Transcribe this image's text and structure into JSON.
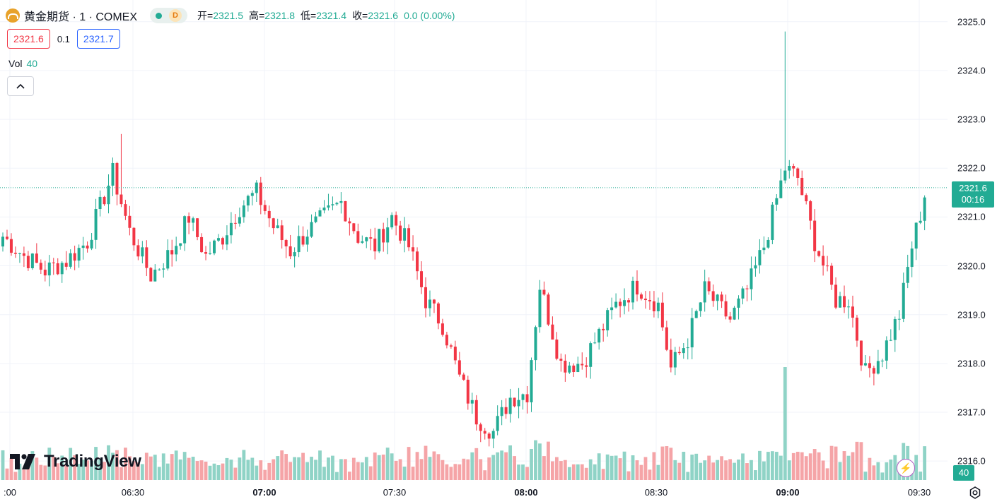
{
  "symbol": {
    "title": "黄金期货 · 1 · COMEX",
    "logo_icon": "gold-bars-icon",
    "status_dot_color": "#22ab94",
    "session_badge": "D"
  },
  "ohlc": {
    "open_label": "开=",
    "open": "2321.5",
    "high_label": "高=",
    "high": "2321.8",
    "low_label": "低=",
    "low": "2321.4",
    "close_label": "收=",
    "close": "2321.6",
    "change": "0.0 (0.00%)"
  },
  "quote": {
    "bid": "2321.6",
    "spread": "0.1",
    "ask": "2321.7"
  },
  "volume_legend": {
    "label": "Vol",
    "value": "40"
  },
  "branding": {
    "logo_text": "TradingView"
  },
  "last_price": {
    "price": "2321.6",
    "countdown": "00:16",
    "volume": "40"
  },
  "colors": {
    "up": "#22ab94",
    "down": "#f23645",
    "vol_up": "#8fd3c6",
    "vol_down": "#f5a4a7"
  },
  "chart_data": {
    "type": "candlestick",
    "interval": "1 minute",
    "ylim": [
      2315.8,
      2325.3
    ],
    "y_ticks": [
      "2325.0",
      "2324.0",
      "2323.0",
      "2322.0",
      "2321.0",
      "2320.0",
      "2319.0",
      "2318.0",
      "2317.0",
      "2316.0"
    ],
    "x_ticks": [
      {
        "label": ":00",
        "bold": false
      },
      {
        "label": "06:30",
        "bold": false
      },
      {
        "label": "07:00",
        "bold": true
      },
      {
        "label": "07:30",
        "bold": false
      },
      {
        "label": "08:00",
        "bold": true
      },
      {
        "label": "08:30",
        "bold": false
      },
      {
        "label": "09:00",
        "bold": true
      },
      {
        "label": "09:30",
        "bold": false
      }
    ],
    "last_price_line": 2321.6,
    "grid": true,
    "anchors": [
      [
        0,
        2320.6
      ],
      [
        5,
        2320.2
      ],
      [
        10,
        2319.9
      ],
      [
        15,
        2320.1
      ],
      [
        20,
        2320.5
      ],
      [
        26,
        2321.9
      ],
      [
        30,
        2320.7
      ],
      [
        35,
        2319.8
      ],
      [
        40,
        2320.3
      ],
      [
        44,
        2321.0
      ],
      [
        48,
        2320.2
      ],
      [
        52,
        2320.6
      ],
      [
        56,
        2321.2
      ],
      [
        60,
        2321.5
      ],
      [
        64,
        2320.8
      ],
      [
        68,
        2320.3
      ],
      [
        72,
        2320.7
      ],
      [
        76,
        2321.0
      ],
      [
        80,
        2321.3
      ],
      [
        84,
        2320.6
      ],
      [
        88,
        2320.4
      ],
      [
        92,
        2321.0
      ],
      [
        96,
        2320.4
      ],
      [
        100,
        2319.3
      ],
      [
        104,
        2318.8
      ],
      [
        108,
        2317.7
      ],
      [
        112,
        2316.9
      ],
      [
        116,
        2316.6
      ],
      [
        120,
        2317.3
      ],
      [
        124,
        2317.4
      ],
      [
        127,
        2319.6
      ],
      [
        132,
        2318.0
      ],
      [
        137,
        2318.0
      ],
      [
        141,
        2318.6
      ],
      [
        145,
        2319.2
      ],
      [
        150,
        2319.6
      ],
      [
        155,
        2319.2
      ],
      [
        158,
        2317.9
      ],
      [
        162,
        2318.5
      ],
      [
        166,
        2319.5
      ],
      [
        172,
        2318.9
      ],
      [
        176,
        2319.5
      ],
      [
        180,
        2320.4
      ],
      [
        185,
        2322.0
      ],
      [
        188,
        2321.8
      ],
      [
        192,
        2320.5
      ],
      [
        197,
        2319.3
      ],
      [
        200,
        2319.3
      ],
      [
        204,
        2317.8
      ],
      [
        208,
        2318.2
      ],
      [
        212,
        2319.0
      ],
      [
        215,
        2320.4
      ],
      [
        218,
        2321.4
      ]
    ]
  }
}
